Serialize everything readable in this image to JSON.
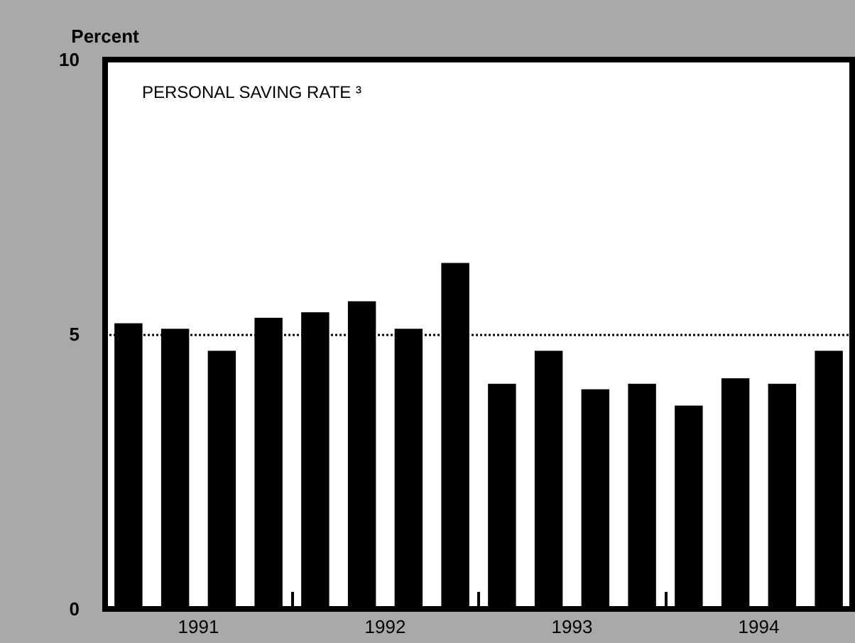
{
  "chart_data": {
    "type": "bar",
    "title": "PERSONAL SAVING RATE ³",
    "ylabel": "Percent",
    "x": [
      1991.125,
      1991.375,
      1991.625,
      1991.875,
      1992.125,
      1992.375,
      1992.625,
      1992.875,
      1993.125,
      1993.375,
      1993.625,
      1993.875,
      1994.125,
      1994.375,
      1994.625,
      1994.875
    ],
    "values": [
      5.2,
      5.1,
      4.7,
      5.3,
      5.4,
      5.6,
      5.1,
      6.3,
      4.1,
      4.7,
      4.0,
      4.1,
      3.7,
      4.2,
      4.1,
      4.7
    ],
    "color": "#000000",
    "xlim": [
      1991,
      1995
    ],
    "xticks": [
      {
        "value": 1991.5,
        "label": "1991"
      },
      {
        "value": 1992,
        "label": null
      },
      {
        "value": 1992.5,
        "label": "1992"
      },
      {
        "value": 1993,
        "label": null
      },
      {
        "value": 1993.5,
        "label": "1993"
      },
      {
        "value": 1994,
        "label": null
      },
      {
        "value": 1994.5,
        "label": "1994"
      }
    ],
    "ylim": [
      0,
      10
    ],
    "yticks": [
      0,
      5,
      10
    ],
    "ref_lines": [
      {
        "axis": "y",
        "value": 5,
        "line_style": "dotted",
        "color": "#000000"
      }
    ],
    "grid": false
  }
}
